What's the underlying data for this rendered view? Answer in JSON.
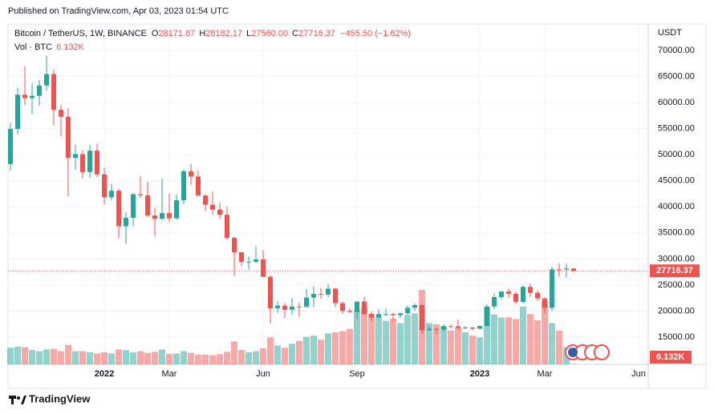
{
  "published": "Published on TradingView.com, Apr 03, 2023 01:54 UTC",
  "brand": "TradingView",
  "chart_data": {
    "type": "candlestick",
    "symbol": "Bitcoin / TetherUS, 1W, BINANCE",
    "legend_labels": [
      "O",
      "H",
      "L",
      "C"
    ],
    "last_labels": [
      "28171.87",
      "28182.17",
      "27560.00",
      "27716.37"
    ],
    "change_label": "−455.50 (−1.62%)",
    "volume_name": "Vol · BTC",
    "volume_label": "6.132K",
    "currency": "USDT",
    "up_color": "#26a69a",
    "down_color": "#ef5350",
    "grid": true,
    "ylim": [
      9777,
      75070
    ],
    "yticks": [
      {
        "value": 15000,
        "label": "15000.00"
      },
      {
        "value": 20000,
        "label": "20000.00"
      },
      {
        "value": 25000,
        "label": "25000.00"
      },
      {
        "value": 30000,
        "label": "30000.00"
      },
      {
        "value": 35000,
        "label": "35000.00"
      },
      {
        "value": 40000,
        "label": "40000.00"
      },
      {
        "value": 45000,
        "label": "45000.00"
      },
      {
        "value": 50000,
        "label": "50000.00"
      },
      {
        "value": 55000,
        "label": "55000.00"
      },
      {
        "value": 60000,
        "label": "60000.00"
      },
      {
        "value": 65000,
        "label": "65000.00"
      },
      {
        "value": 70000,
        "label": "70000.00"
      }
    ],
    "categories": [
      null,
      null,
      null,
      null,
      null,
      null,
      null,
      null,
      null,
      null,
      null,
      null,
      null,
      "2022",
      null,
      null,
      null,
      null,
      null,
      null,
      null,
      null,
      "Mar",
      null,
      null,
      null,
      null,
      null,
      null,
      null,
      null,
      null,
      null,
      null,
      null,
      "Jun",
      null,
      null,
      null,
      null,
      null,
      null,
      null,
      null,
      null,
      null,
      null,
      null,
      "Sep",
      null,
      null,
      null,
      null,
      null,
      null,
      null,
      null,
      null,
      null,
      null,
      null,
      null,
      null,
      null,
      null,
      "2023",
      null,
      null,
      null,
      null,
      null,
      null,
      null,
      null,
      "Mar",
      null,
      null,
      null,
      null,
      null,
      null,
      null,
      null,
      null,
      null,
      null,
      null,
      "Jun"
    ],
    "open": [
      48200,
      54950,
      61500,
      60860,
      61300,
      63280,
      65466,
      58620,
      57270,
      49400,
      50100,
      46680,
      50775,
      46220,
      41830,
      43080,
      36280,
      37881,
      42412,
      42200,
      38350,
      37700,
      38800,
      37800,
      41260,
      46820,
      45810,
      42150,
      40400,
      39450,
      38470,
      34060,
      31300,
      29450,
      29460,
      29900,
      26574,
      20550,
      21030,
      20260,
      20860,
      20780,
      22580,
      23300,
      23170,
      24300,
      21520,
      20040,
      19830,
      21820,
      19420,
      18800,
      19420,
      19420,
      19200,
      19570,
      20630,
      21150,
      16330,
      16600,
      16460,
      17110,
      17090,
      16780,
      16840,
      16620,
      17130,
      20880,
      22700,
      23740,
      23330,
      21770,
      24630,
      23490,
      22430,
      20620,
      28000,
      27990,
      28171.87,
      null,
      null,
      null,
      null,
      null,
      null,
      null,
      null,
      null
    ],
    "high": [
      56100,
      62900,
      67000,
      63700,
      64300,
      69000,
      66300,
      59500,
      59000,
      51900,
      50900,
      51900,
      52100,
      47560,
      44460,
      43500,
      38900,
      42700,
      45850,
      44750,
      39850,
      45400,
      42600,
      42350,
      47200,
      48200,
      47000,
      42400,
      42980,
      40800,
      40000,
      34250,
      31300,
      30500,
      32400,
      31700,
      26900,
      21900,
      21540,
      22500,
      21600,
      24280,
      24670,
      24450,
      25200,
      24450,
      21880,
      20580,
      21860,
      22800,
      19960,
      20380,
      20470,
      19700,
      19700,
      21080,
      21480,
      21470,
      17190,
      16770,
      17430,
      17420,
      18390,
      17060,
      16970,
      17180,
      21260,
      23370,
      23820,
      24250,
      23740,
      24900,
      25250,
      24000,
      22600,
      28500,
      29180,
      29190,
      28182.17,
      null,
      null,
      null,
      null,
      null,
      null,
      null,
      null,
      null
    ],
    "low": [
      47000,
      53900,
      59500,
      57800,
      59400,
      62300,
      55600,
      53500,
      42000,
      47100,
      45500,
      45560,
      45700,
      40500,
      41250,
      34000,
      32900,
      36250,
      41650,
      38000,
      34300,
      37450,
      37150,
      37550,
      40470,
      44200,
      42100,
      39200,
      38500,
      37700,
      33700,
      26700,
      28650,
      28000,
      29300,
      26560,
      17600,
      19640,
      18650,
      19280,
      18900,
      20760,
      20700,
      22400,
      22660,
      20760,
      19520,
      19600,
      18540,
      19320,
      18120,
      18470,
      19080,
      18190,
      18650,
      19240,
      20050,
      15590,
      16230,
      15480,
      16050,
      16730,
      16530,
      16560,
      16330,
      16500,
      17100,
      20400,
      22300,
      22500,
      21350,
      21530,
      22720,
      21970,
      19550,
      20060,
      26600,
      26510,
      27560,
      null,
      null,
      null,
      null,
      null,
      null,
      null,
      null,
      null
    ],
    "close": [
      54950,
      61500,
      60860,
      61300,
      63280,
      65466,
      58620,
      57270,
      49400,
      50100,
      46680,
      50775,
      46220,
      41830,
      43080,
      36280,
      37881,
      42412,
      42200,
      38350,
      37700,
      38800,
      37800,
      41260,
      46820,
      45810,
      42150,
      40400,
      39450,
      38470,
      34060,
      31300,
      29450,
      29460,
      29900,
      26574,
      20550,
      21030,
      20260,
      20860,
      20780,
      22580,
      23300,
      23170,
      24300,
      21520,
      20040,
      19830,
      21820,
      19420,
      18800,
      19420,
      19420,
      19200,
      19570,
      20630,
      21150,
      16330,
      16600,
      16460,
      17110,
      17090,
      16780,
      16840,
      16620,
      17130,
      20880,
      22700,
      23740,
      23330,
      21770,
      24630,
      23490,
      22430,
      20620,
      28000,
      27990,
      28171.87,
      27716.37,
      null,
      null,
      null,
      null,
      null,
      null,
      null,
      null,
      null
    ],
    "volume": [
      290000,
      310000,
      300000,
      250000,
      230000,
      260000,
      270000,
      230000,
      340000,
      230000,
      230000,
      210000,
      190000,
      210000,
      190000,
      260000,
      250000,
      210000,
      230000,
      200000,
      220000,
      260000,
      180000,
      190000,
      230000,
      200000,
      170000,
      170000,
      160000,
      180000,
      220000,
      400000,
      250000,
      210000,
      230000,
      280000,
      470000,
      330000,
      290000,
      360000,
      410000,
      480000,
      500000,
      430000,
      540000,
      560000,
      580000,
      620000,
      950000,
      1000000,
      880000,
      830000,
      760000,
      800000,
      720000,
      860000,
      890000,
      1300000,
      720000,
      700000,
      660000,
      590000,
      640000,
      560000,
      500000,
      470000,
      1000000,
      870000,
      820000,
      820000,
      790000,
      1010000,
      880000,
      770000,
      1100000,
      720000,
      590000,
      300000,
      6132,
      null,
      null,
      null,
      null,
      null,
      null,
      null,
      null,
      null
    ]
  }
}
